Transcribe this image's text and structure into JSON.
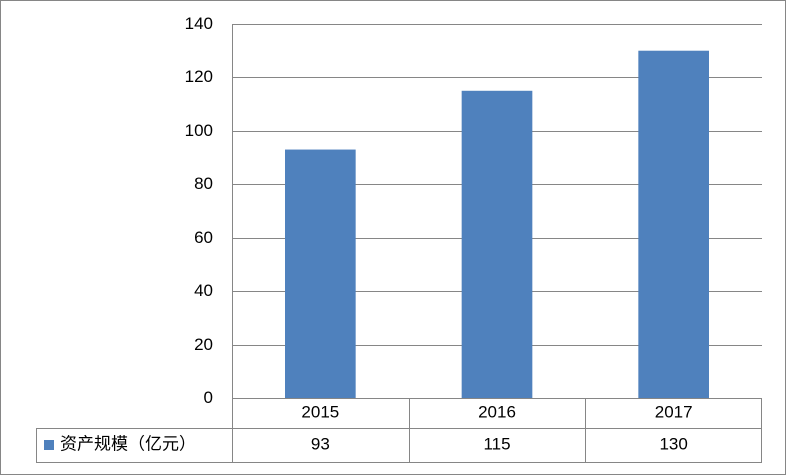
{
  "chart_data": {
    "type": "bar",
    "categories": [
      "2015",
      "2016",
      "2017"
    ],
    "series": [
      {
        "name": "资产规模（亿元）",
        "color": "#4f81bd",
        "values": [
          93,
          115,
          130
        ]
      }
    ],
    "ylim": [
      0,
      140
    ],
    "yticks": [
      0,
      20,
      40,
      60,
      80,
      100,
      120,
      140
    ],
    "grid": true
  }
}
